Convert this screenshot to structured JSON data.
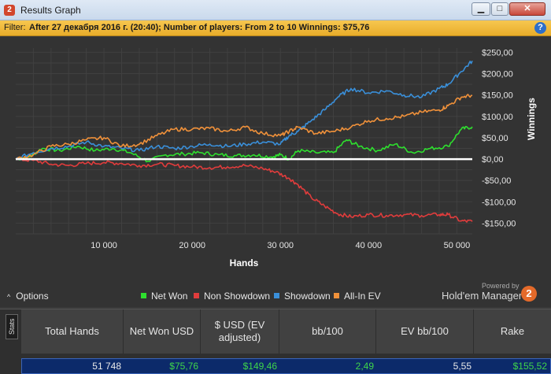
{
  "window": {
    "app_icon": "2",
    "title": "Results Graph",
    "minimize_glyph": "▁",
    "maximize_glyph": "□",
    "close_glyph": "✕"
  },
  "filter": {
    "label": "Filter:",
    "text": "After 27 декабря 2016 г. (20:40); Number of players: From 2 to 10 Winnings: $75,76",
    "help_glyph": "?"
  },
  "chart_data": {
    "type": "line",
    "xlabel": "Hands",
    "ylabel": "Winnings",
    "x_ticks": [
      10000,
      20000,
      30000,
      40000,
      50000
    ],
    "x_tick_labels": [
      "10 000",
      "20 000",
      "30 000",
      "40 000",
      "50 000"
    ],
    "xlim": [
      0,
      51748
    ],
    "ylim": [
      -175,
      260
    ],
    "y_ticks": [
      -150,
      -100,
      -50,
      0,
      50,
      100,
      150,
      200,
      250
    ],
    "y_tick_labels": [
      "-$150,00",
      "-$100,00",
      "-$50,00",
      "$0,00",
      "$50,00",
      "$100,00",
      "$150,00",
      "$200,00",
      "$250,00"
    ],
    "grid": true,
    "background": "#333333",
    "series": [
      {
        "name": "Net Won",
        "color": "#2ee02e",
        "x": [
          0,
          1500,
          3000,
          5000,
          7000,
          9000,
          11000,
          13000,
          15000,
          17000,
          19000,
          21000,
          23000,
          25000,
          27000,
          29000,
          30000,
          31000,
          32000,
          34000,
          36000,
          37500,
          39000,
          41000,
          43000,
          45000,
          47000,
          49000,
          50500,
          51748
        ],
        "y": [
          0,
          5,
          25,
          20,
          30,
          20,
          25,
          15,
          -5,
          10,
          12,
          15,
          10,
          8,
          10,
          5,
          10,
          0,
          20,
          15,
          15,
          45,
          30,
          20,
          35,
          15,
          25,
          30,
          70,
          75.76
        ]
      },
      {
        "name": "Non Showdown",
        "color": "#e03c3c",
        "x": [
          0,
          2000,
          4000,
          6000,
          8000,
          10000,
          12000,
          14000,
          16000,
          18000,
          20000,
          22000,
          24000,
          26000,
          28000,
          29500,
          31000,
          32000,
          33500,
          35000,
          36500,
          38000,
          40000,
          42000,
          44000,
          46000,
          48000,
          49000,
          50500,
          51748
        ],
        "y": [
          0,
          -3,
          -12,
          -15,
          -10,
          -8,
          -10,
          -15,
          -12,
          -15,
          -18,
          -20,
          -18,
          -15,
          -22,
          -30,
          -45,
          -60,
          -90,
          -110,
          -128,
          -135,
          -130,
          -132,
          -130,
          -132,
          -130,
          -130,
          -145,
          -146
        ]
      },
      {
        "name": "Showdown",
        "color": "#3a8fd9",
        "x": [
          0,
          2000,
          4000,
          6000,
          8000,
          10000,
          12000,
          14000,
          16000,
          18000,
          20000,
          22000,
          24000,
          26000,
          28000,
          30000,
          31000,
          32000,
          33500,
          35000,
          36500,
          38000,
          40000,
          42000,
          44000,
          46000,
          48000,
          49000,
          50500,
          51748
        ],
        "y": [
          0,
          15,
          25,
          30,
          40,
          30,
          25,
          20,
          30,
          25,
          30,
          35,
          30,
          35,
          40,
          35,
          55,
          65,
          90,
          115,
          145,
          165,
          155,
          160,
          150,
          145,
          165,
          175,
          205,
          230
        ]
      },
      {
        "name": "All-In EV",
        "color": "#f0913a",
        "x": [
          0,
          2000,
          4000,
          6000,
          8000,
          10000,
          12000,
          14000,
          16000,
          18000,
          20000,
          22000,
          24000,
          26000,
          28000,
          30000,
          31000,
          32000,
          34000,
          36000,
          38000,
          40000,
          42000,
          44000,
          46000,
          48000,
          49000,
          50500,
          51748
        ],
        "y": [
          0,
          10,
          30,
          35,
          45,
          50,
          30,
          35,
          55,
          70,
          70,
          72,
          65,
          75,
          60,
          55,
          65,
          75,
          60,
          65,
          75,
          90,
          95,
          100,
          110,
          115,
          125,
          145,
          149.46
        ]
      },
      {
        "name": "",
        "color": "#ffffff",
        "x": [
          0,
          51748
        ],
        "y": [
          0,
          0
        ]
      }
    ]
  },
  "legend": {
    "items": [
      {
        "label": "Net Won",
        "color": "#2ee02e"
      },
      {
        "label": "Non Showdown",
        "color": "#e03c3c"
      },
      {
        "label": "Showdown",
        "color": "#3a8fd9"
      },
      {
        "label": "All-In EV",
        "color": "#f0913a"
      }
    ]
  },
  "options": {
    "chevron": "^",
    "label": "Options"
  },
  "branding": {
    "powered": "Powered by",
    "name": "Hold'em Manager",
    "logo": "2",
    "logo_color": "#e46a2a"
  },
  "stats": {
    "tab_label": "Stats",
    "columns": [
      "Total Hands",
      "Net Won USD",
      "$ USD (EV adjusted)",
      "bb/100",
      "EV bb/100",
      "Rake"
    ],
    "row": [
      {
        "value": "51 748",
        "color": "#e8e8e8"
      },
      {
        "value": "$75,76",
        "color": "#3fd64a"
      },
      {
        "value": "$149,46",
        "color": "#3fd64a"
      },
      {
        "value": "2,49",
        "color": "#3fd64a"
      },
      {
        "value": "5,55",
        "color": "#e8e8e8"
      },
      {
        "value": "$155,52",
        "color": "#3fd64a"
      }
    ]
  }
}
